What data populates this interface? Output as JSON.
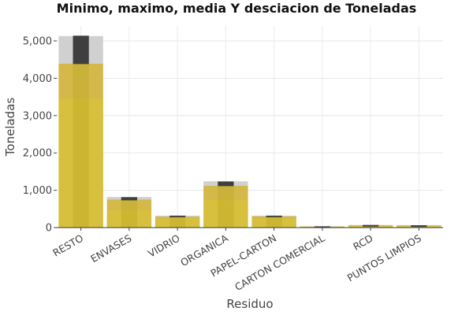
{
  "chart_data": {
    "type": "bar",
    "title": "Minimo, maximo, media Y desciacion de Toneladas",
    "xlabel": "Residuo",
    "ylabel": "Toneladas",
    "ylim": [
      0,
      5400
    ],
    "yticks": [
      0,
      1000,
      2000,
      3000,
      4000,
      5000
    ],
    "ytick_labels": [
      "0",
      "1,000",
      "2,000",
      "3,000",
      "4,000",
      "5,000"
    ],
    "grid": true,
    "categories": [
      "RESTO",
      "ENVASES",
      "VIDRIO",
      "ORGANICA",
      "PAPEL-CARTON",
      "CARTON COMERCIAL",
      "RCD",
      "PUNTOS LIMPIOS"
    ],
    "series": [
      {
        "name": "",
        "type": "bar",
        "values": [
          5130,
          820,
          320,
          1240,
          320,
          35,
          70,
          65
        ],
        "color": "#d0d0d0"
      },
      {
        "name": "",
        "type": "bar",
        "values": [
          4390,
          750,
          290,
          1120,
          300,
          28,
          60,
          55
        ],
        "color": "#d4b436"
      },
      {
        "name": "",
        "type": "bar",
        "values": [
          3450,
          470,
          240,
          740,
          260,
          22,
          50,
          45
        ],
        "color": "#d8c23a"
      },
      {
        "name": "",
        "type": "errorbar",
        "low": [
          4380,
          730,
          280,
          1110,
          295,
          26,
          58,
          52
        ],
        "high": [
          5140,
          815,
          320,
          1235,
          320,
          34,
          70,
          62
        ],
        "color": "#3f3f3f"
      }
    ]
  }
}
